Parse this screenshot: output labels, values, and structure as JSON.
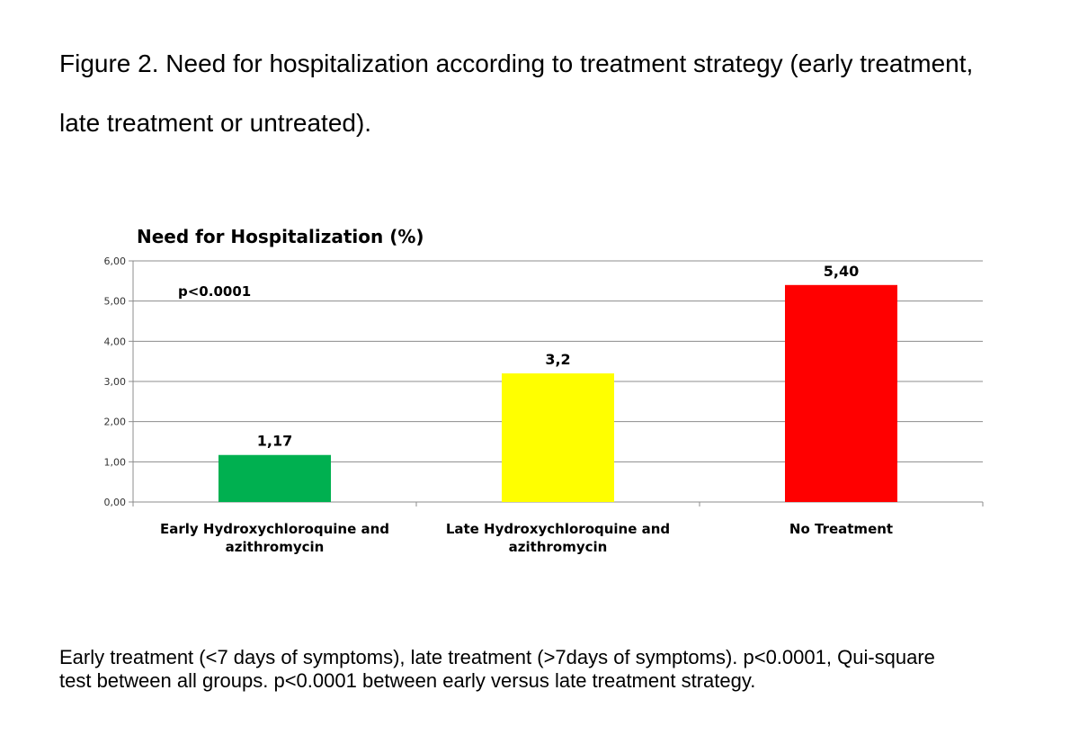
{
  "caption": {
    "line1": "Figure 2. Need for hospitalization according to treatment strategy (early treatment,",
    "line2": "late treatment or untreated)."
  },
  "footnote": {
    "line1": "Early treatment (<7 days of symptoms), late treatment (>7days of symptoms). p<0.0001, Qui-square",
    "line2": "test between all groups. p<0.0001 between early versus late treatment strategy."
  },
  "chart_data": {
    "type": "bar",
    "title": "Need  for Hospitalization (%)",
    "xlabel": "",
    "ylabel": "",
    "ylim": [
      0,
      6
    ],
    "grid": true,
    "yticks": [
      {
        "value": 0,
        "label": "0,00"
      },
      {
        "value": 1,
        "label": "1,00"
      },
      {
        "value": 2,
        "label": "2,00"
      },
      {
        "value": 3,
        "label": "3,00"
      },
      {
        "value": 4,
        "label": "4,00"
      },
      {
        "value": 5,
        "label": "5,00"
      },
      {
        "value": 6,
        "label": "6,00"
      }
    ],
    "categories": [
      [
        "Early Hydroxychloroquine and",
        "azithromycin"
      ],
      [
        "Late Hydroxychloroquine and",
        "azithromycin"
      ],
      [
        "No Treatment"
      ]
    ],
    "values": [
      1.17,
      3.2,
      5.4
    ],
    "data_labels": [
      "1,17",
      "3,2",
      "5,40"
    ],
    "colors": [
      "#00b050",
      "#ffff00",
      "#ff0000"
    ],
    "annotation": "p<0.0001"
  }
}
